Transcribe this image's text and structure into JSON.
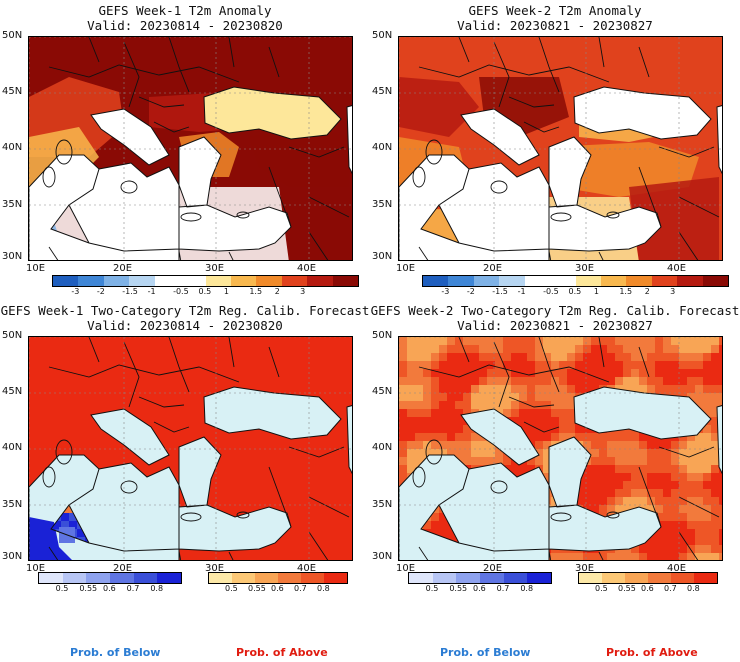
{
  "panels": [
    {
      "title": "GEFS Week-1 T2m Anomaly",
      "valid": "Valid: 20230814 - 20230820",
      "type": "anomaly",
      "week": 1
    },
    {
      "title": "GEFS Week-2 T2m Anomaly",
      "valid": "Valid: 20230821 - 20230827",
      "type": "anomaly",
      "week": 2
    },
    {
      "title": "GEFS Week-1 Two-Category T2m Reg. Calib. Forecast",
      "valid": "Valid: 20230814 - 20230820",
      "type": "prob",
      "week": 1
    },
    {
      "title": "GEFS Week-2 Two-Category T2m Reg. Calib. Forecast",
      "valid": "Valid: 20230821 - 20230827",
      "type": "prob",
      "week": 2
    }
  ],
  "lat_labels": [
    "50N",
    "45N",
    "40N",
    "35N",
    "30N"
  ],
  "lon_labels": [
    "10E",
    "20E",
    "30E",
    "40E"
  ],
  "anomaly_colorbar": {
    "labels": [
      "-3",
      "-2",
      "-1.5",
      "-1",
      "-0.5",
      "0.5",
      "1",
      "1.5",
      "2",
      "3"
    ],
    "colors": [
      "#1f5fbf",
      "#3f86d6",
      "#7fb2e6",
      "#b7d6f2",
      "#ffffff",
      "#ffffff",
      "#fde79a",
      "#f8b84e",
      "#f08a2a",
      "#e0421d",
      "#b51a10",
      "#8a0a05"
    ]
  },
  "below_colorbar": {
    "labels": [
      "0.5",
      "0.55",
      "0.6",
      "0.7",
      "0.8"
    ],
    "colors": [
      "#dfe6fb",
      "#b8c6f5",
      "#8ea2ee",
      "#5f75e3",
      "#3a4fd8",
      "#1a22d6"
    ]
  },
  "above_colorbar": {
    "labels": [
      "0.5",
      "0.55",
      "0.6",
      "0.7",
      "0.8"
    ],
    "colors": [
      "#fde9a8",
      "#fcc876",
      "#f8a555",
      "#f27a3c",
      "#ee5626",
      "#ea2a12"
    ]
  },
  "prob_labels": {
    "below": "Prob. of Below",
    "above": "Prob. of Above"
  },
  "colors": {
    "sea": "#d8f1f5",
    "below_text": "#2b7cd3",
    "above_text": "#e01c10"
  }
}
